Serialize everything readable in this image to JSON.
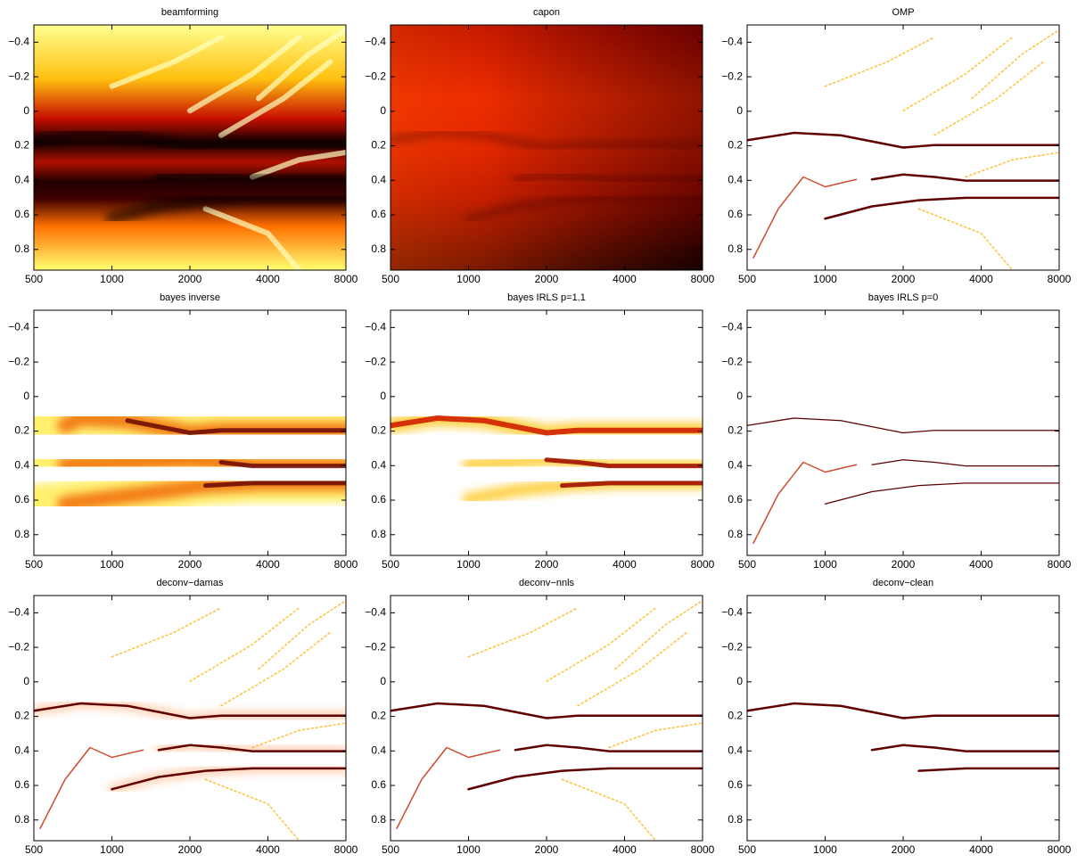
{
  "chart_data": [
    {
      "type": "heatmap",
      "title": "beamforming",
      "xlog": true,
      "y_inverted": true,
      "xlim": [
        500,
        8000
      ],
      "xticks": [
        500,
        1000,
        2000,
        4000,
        8000
      ],
      "ylim": [
        -0.5,
        0.92
      ],
      "yticks": [
        {
          "value": -0.4,
          "label": "−0.4"
        },
        {
          "value": -0.2,
          "label": "−0.2"
        },
        0,
        0.2,
        0.4,
        0.6,
        0.8
      ]
    },
    {
      "type": "heatmap",
      "title": "capon",
      "xlog": true,
      "y_inverted": true,
      "xlim": [
        500,
        8000
      ],
      "xticks": [
        500,
        1000,
        2000,
        4000,
        8000
      ],
      "ylim": [
        -0.5,
        0.92
      ],
      "yticks": [
        {
          "value": -0.4,
          "label": "−0.4"
        },
        {
          "value": -0.2,
          "label": "−0.2"
        },
        0,
        0.2,
        0.4,
        0.6,
        0.8
      ]
    },
    {
      "type": "heatmap",
      "title": "OMP",
      "xlog": true,
      "y_inverted": true,
      "xlim": [
        500,
        8000
      ],
      "xticks": [
        500,
        1000,
        2000,
        4000,
        8000
      ],
      "ylim": [
        -0.5,
        0.92
      ],
      "yticks": [
        {
          "value": -0.4,
          "label": "−0.4"
        },
        {
          "value": -0.2,
          "label": "−0.2"
        },
        0,
        0.2,
        0.4,
        0.6,
        0.8
      ]
    },
    {
      "type": "heatmap",
      "title": "bayes inverse",
      "xlog": true,
      "y_inverted": true,
      "xlim": [
        500,
        8000
      ],
      "xticks": [
        500,
        1000,
        2000,
        4000,
        8000
      ],
      "ylim": [
        -0.5,
        0.92
      ],
      "yticks": [
        {
          "value": -0.4,
          "label": "−0.4"
        },
        {
          "value": -0.2,
          "label": "−0.2"
        },
        0,
        0.2,
        0.4,
        0.6,
        0.8
      ]
    },
    {
      "type": "heatmap",
      "title": "bayes IRLS p=1.1",
      "xlog": true,
      "y_inverted": true,
      "xlim": [
        500,
        8000
      ],
      "xticks": [
        500,
        1000,
        2000,
        4000,
        8000
      ],
      "ylim": [
        -0.5,
        0.92
      ],
      "yticks": [
        {
          "value": -0.4,
          "label": "−0.4"
        },
        {
          "value": -0.2,
          "label": "−0.2"
        },
        0,
        0.2,
        0.4,
        0.6,
        0.8
      ]
    },
    {
      "type": "heatmap",
      "title": "bayes IRLS p=0",
      "xlog": true,
      "y_inverted": true,
      "xlim": [
        500,
        8000
      ],
      "xticks": [
        500,
        1000,
        2000,
        4000,
        8000
      ],
      "ylim": [
        -0.5,
        0.92
      ],
      "yticks": [
        {
          "value": -0.4,
          "label": "−0.4"
        },
        {
          "value": -0.2,
          "label": "−0.2"
        },
        0,
        0.2,
        0.4,
        0.6,
        0.8
      ]
    },
    {
      "type": "heatmap",
      "title": "deconv−damas",
      "xlog": true,
      "y_inverted": true,
      "xlim": [
        500,
        8000
      ],
      "xticks": [
        500,
        1000,
        2000,
        4000,
        8000
      ],
      "ylim": [
        -0.5,
        0.92
      ],
      "yticks": [
        {
          "value": -0.4,
          "label": "−0.4"
        },
        {
          "value": -0.2,
          "label": "−0.2"
        },
        0,
        0.2,
        0.4,
        0.6,
        0.8
      ]
    },
    {
      "type": "heatmap",
      "title": "deconv−nnls",
      "xlog": true,
      "y_inverted": true,
      "xlim": [
        500,
        8000
      ],
      "xticks": [
        500,
        1000,
        2000,
        4000,
        8000
      ],
      "ylim": [
        -0.5,
        0.92
      ],
      "yticks": [
        {
          "value": -0.4,
          "label": "−0.4"
        },
        {
          "value": -0.2,
          "label": "−0.2"
        },
        0,
        0.2,
        0.4,
        0.6,
        0.8
      ]
    },
    {
      "type": "heatmap",
      "title": "deconv−clean",
      "xlog": true,
      "y_inverted": true,
      "xlim": [
        500,
        8000
      ],
      "xticks": [
        500,
        1000,
        2000,
        4000,
        8000
      ],
      "ylim": [
        -0.5,
        0.92
      ],
      "yticks": [
        {
          "value": -0.4,
          "label": "−0.4"
        },
        {
          "value": -0.2,
          "label": "−0.2"
        },
        0,
        0.2,
        0.4,
        0.6,
        0.8
      ]
    }
  ]
}
